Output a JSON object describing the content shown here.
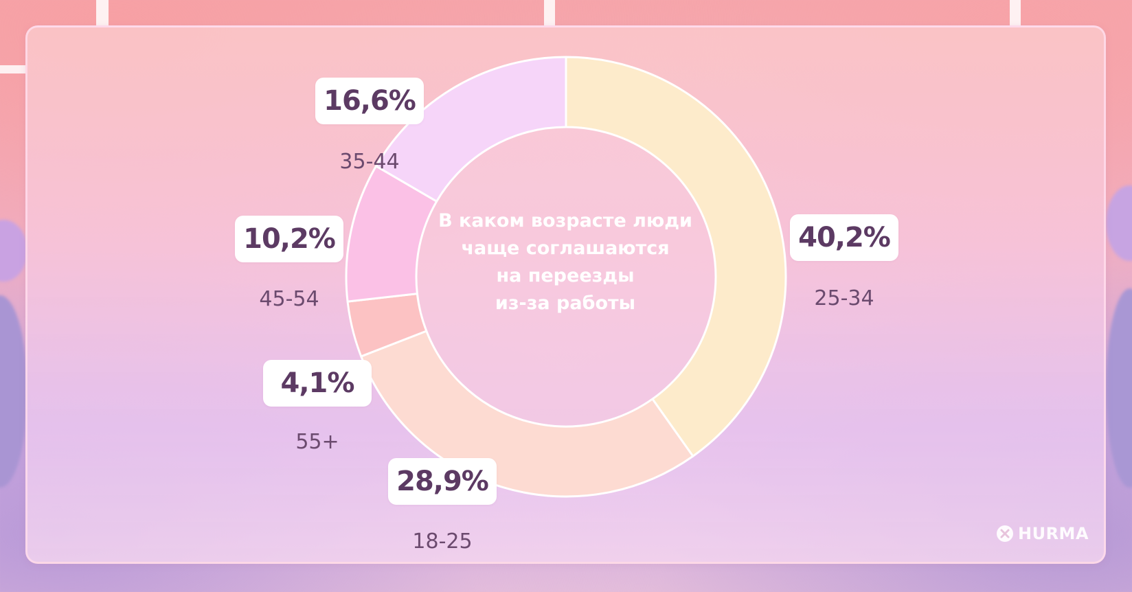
{
  "chart_data": {
    "type": "pie",
    "title": "В каком возрасте люди чаще соглашаются на переезды из-за работы",
    "title_lines": [
      "В каком возрасте люди",
      "чаще соглашаются",
      "на переезды",
      "из-за работы"
    ],
    "slices": [
      {
        "category": "25-34",
        "value": 40.2,
        "label": "40,2%",
        "color": "#fdebcb"
      },
      {
        "category": "18-25",
        "value": 28.9,
        "label": "28,9%",
        "color": "#fddbd2"
      },
      {
        "category": "55+",
        "value": 4.1,
        "label": "4,1%",
        "color": "#fcc2c3"
      },
      {
        "category": "45-54",
        "value": 10.2,
        "label": "10,2%",
        "color": "#fbc1e6"
      },
      {
        "category": "35-44",
        "value": 16.6,
        "label": "16,6%",
        "color": "#f6d5f9"
      }
    ]
  },
  "brand": {
    "logo_text": "HURMA"
  },
  "colors": {
    "label_text": "#5c3a63",
    "slice_border": "#ffffff"
  }
}
